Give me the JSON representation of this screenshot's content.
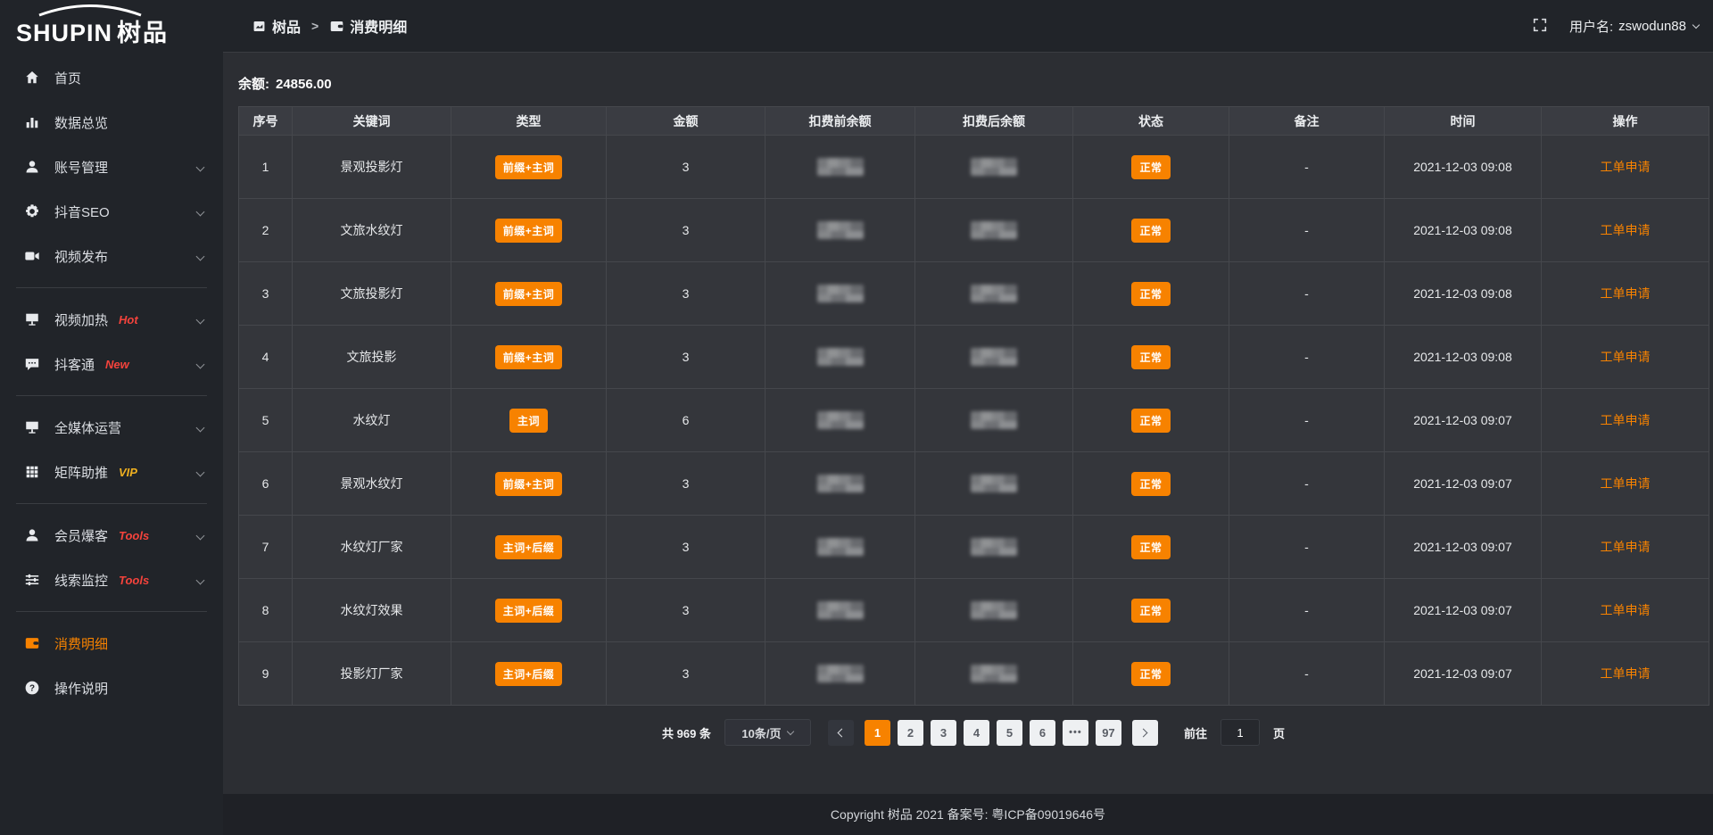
{
  "brand": {
    "logo_en": "SHUPIN",
    "logo_cn": "树品"
  },
  "header": {
    "breadcrumb": [
      {
        "icon": "dashboard-icon",
        "label": "树品"
      },
      {
        "icon": "wallet-icon",
        "label": "消费明细"
      }
    ],
    "separator": ">",
    "username_label": "用户名:",
    "username": "zswodun88"
  },
  "sidebar": {
    "items": [
      {
        "icon": "home-icon",
        "label": "首页"
      },
      {
        "icon": "chart-icon",
        "label": "数据总览"
      },
      {
        "icon": "user-icon",
        "label": "账号管理",
        "chevron": true
      },
      {
        "icon": "gear-icon",
        "label": "抖音SEO",
        "chevron": true
      },
      {
        "icon": "video-icon",
        "label": "视频发布",
        "chevron": true
      },
      {
        "divider": true
      },
      {
        "icon": "screen-icon",
        "label": "视频加热",
        "badge": "Hot",
        "badge_color": "red",
        "chevron": true
      },
      {
        "icon": "chat-icon",
        "label": "抖客通",
        "badge": "New",
        "badge_color": "red",
        "chevron": true
      },
      {
        "divider": true
      },
      {
        "icon": "monitor-icon",
        "label": "全媒体运营",
        "chevron": true
      },
      {
        "icon": "grid-icon",
        "label": "矩阵助推",
        "badge": "VIP",
        "badge_color": "gold",
        "chevron": true
      },
      {
        "divider": true
      },
      {
        "icon": "member-icon",
        "label": "会员爆客",
        "badge": "Tools",
        "badge_color": "red",
        "chevron": true
      },
      {
        "icon": "sliders-icon",
        "label": "线索监控",
        "badge": "Tools",
        "badge_color": "red",
        "chevron": true
      },
      {
        "divider": true
      },
      {
        "icon": "wallet-icon",
        "label": "消费明细",
        "active": true
      },
      {
        "icon": "question-icon",
        "label": "操作说明"
      }
    ]
  },
  "main": {
    "balance_label": "余额:",
    "balance_value": "24856.00",
    "table": {
      "columns": [
        "序号",
        "关键词",
        "类型",
        "金额",
        "扣费前余额",
        "扣费后余额",
        "状态",
        "备注",
        "时间",
        "操作"
      ],
      "redacted_columns": [
        "扣费前余额",
        "扣费后余额"
      ],
      "rows": [
        {
          "no": "1",
          "keyword": "景观投影灯",
          "type": "前缀+主词",
          "amount": "3",
          "status": "正常",
          "remark": "-",
          "time": "2021-12-03 09:08",
          "action": "工单申请"
        },
        {
          "no": "2",
          "keyword": "文旅水纹灯",
          "type": "前缀+主词",
          "amount": "3",
          "status": "正常",
          "remark": "-",
          "time": "2021-12-03 09:08",
          "action": "工单申请"
        },
        {
          "no": "3",
          "keyword": "文旅投影灯",
          "type": "前缀+主词",
          "amount": "3",
          "status": "正常",
          "remark": "-",
          "time": "2021-12-03 09:08",
          "action": "工单申请"
        },
        {
          "no": "4",
          "keyword": "文旅投影",
          "type": "前缀+主词",
          "amount": "3",
          "status": "正常",
          "remark": "-",
          "time": "2021-12-03 09:08",
          "action": "工单申请"
        },
        {
          "no": "5",
          "keyword": "水纹灯",
          "type": "主词",
          "amount": "6",
          "status": "正常",
          "remark": "-",
          "time": "2021-12-03 09:07",
          "action": "工单申请"
        },
        {
          "no": "6",
          "keyword": "景观水纹灯",
          "type": "前缀+主词",
          "amount": "3",
          "status": "正常",
          "remark": "-",
          "time": "2021-12-03 09:07",
          "action": "工单申请"
        },
        {
          "no": "7",
          "keyword": "水纹灯厂家",
          "type": "主词+后缀",
          "amount": "3",
          "status": "正常",
          "remark": "-",
          "time": "2021-12-03 09:07",
          "action": "工单申请"
        },
        {
          "no": "8",
          "keyword": "水纹灯效果",
          "type": "主词+后缀",
          "amount": "3",
          "status": "正常",
          "remark": "-",
          "time": "2021-12-03 09:07",
          "action": "工单申请"
        },
        {
          "no": "9",
          "keyword": "投影灯厂家",
          "type": "主词+后缀",
          "amount": "3",
          "status": "正常",
          "remark": "-",
          "time": "2021-12-03 09:07",
          "action": "工单申请"
        }
      ]
    },
    "pagination": {
      "total_label": "共 969 条",
      "page_size": "10条/页",
      "pages": [
        {
          "label": "1",
          "active": true
        },
        {
          "label": "2"
        },
        {
          "label": "3"
        },
        {
          "label": "4"
        },
        {
          "label": "5"
        },
        {
          "label": "6"
        },
        {
          "label": "•••",
          "more": true
        },
        {
          "label": "97"
        }
      ],
      "goto_label": "前往",
      "goto_value": "1",
      "goto_suffix": "页"
    }
  },
  "footer": {
    "copyright": "Copyright 树品 2021 备案号: 粤ICP备09019646号"
  },
  "colors": {
    "accent": "#f78200",
    "hot_red": "#f4433c",
    "vip_gold": "#efb020"
  }
}
